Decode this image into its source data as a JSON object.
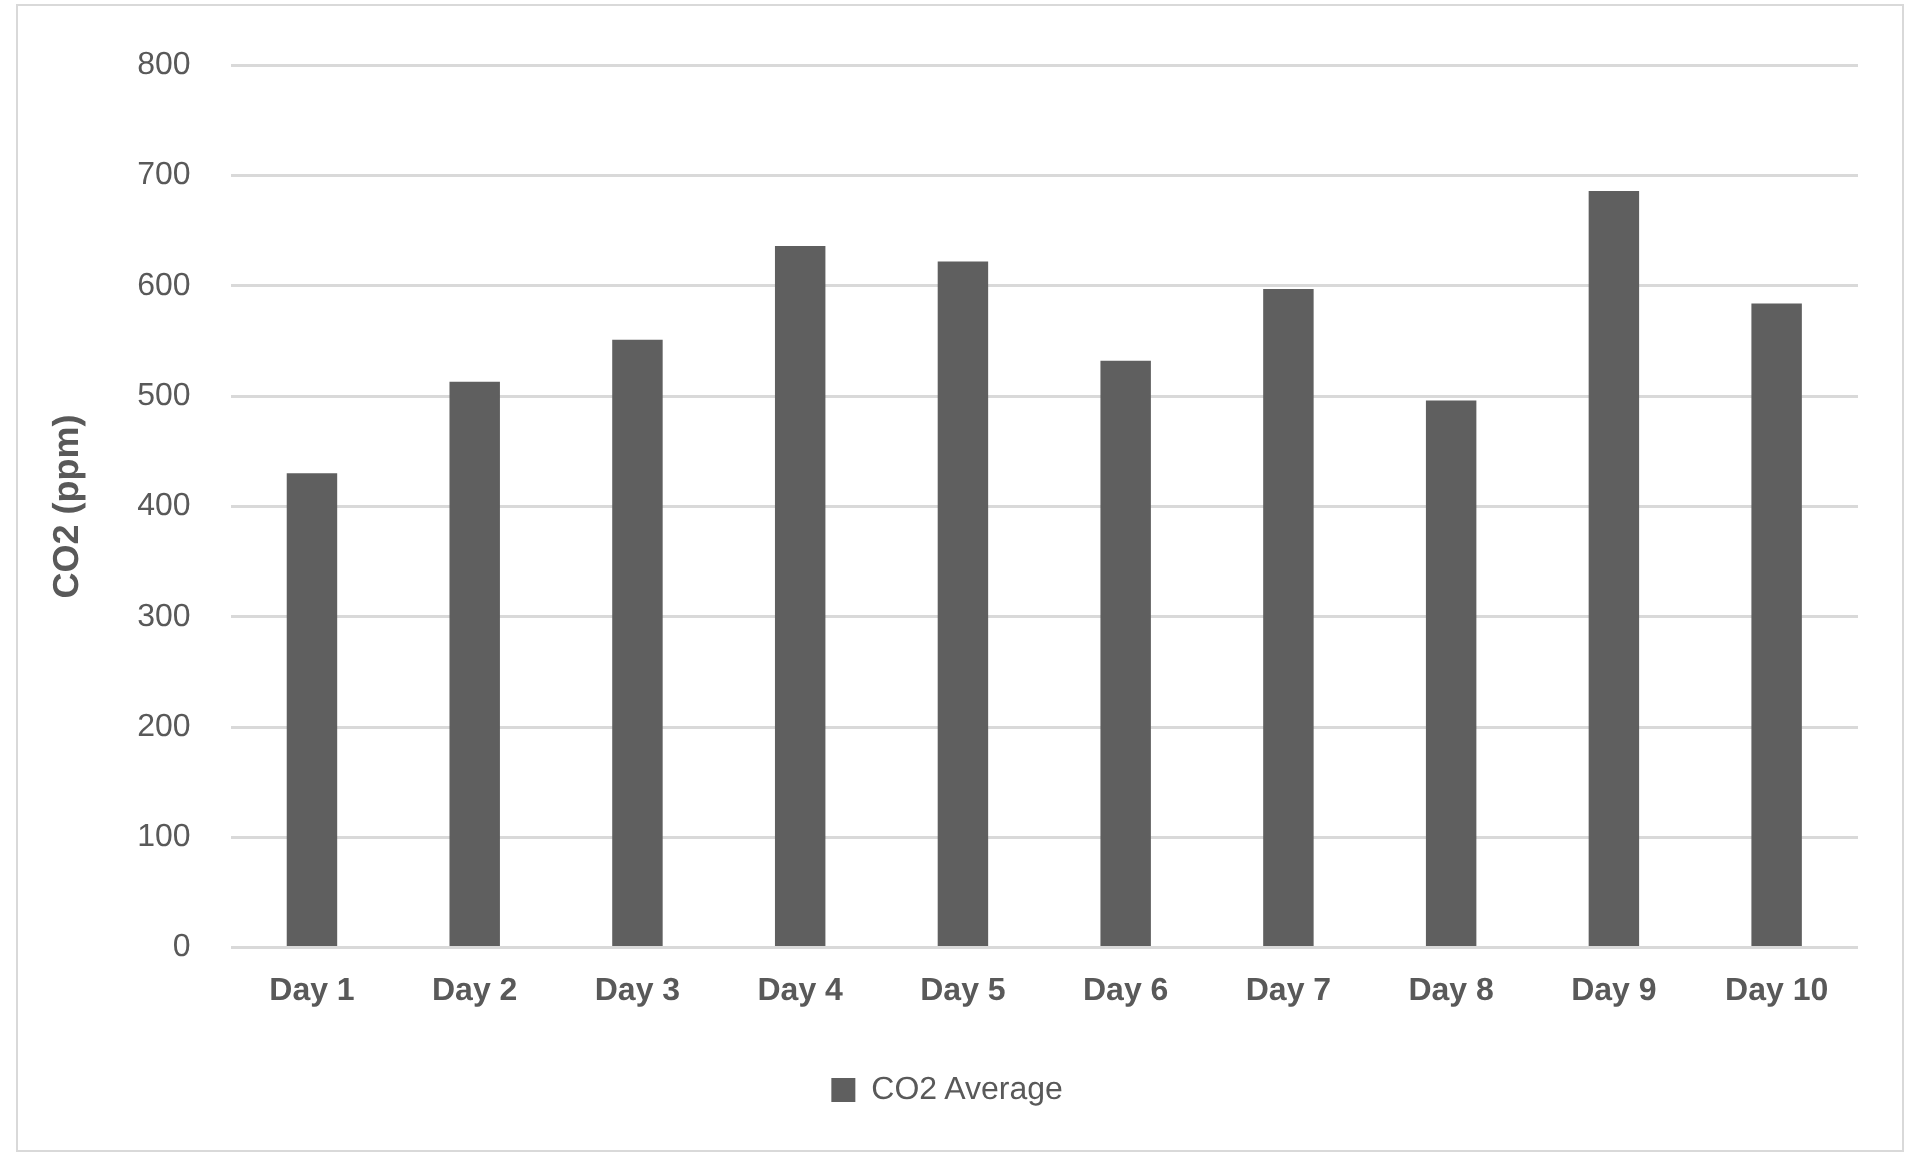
{
  "chart_data": {
    "type": "bar",
    "ylabel": "CO2 (ppm)",
    "categories": [
      "Day 1",
      "Day 2",
      "Day 3",
      "Day 4",
      "Day 5",
      "Day 6",
      "Day 7",
      "Day 8",
      "Day 9",
      "Day 10"
    ],
    "series": [
      {
        "name": "CO2 Average",
        "color": "#5f5f5f",
        "values": [
          430,
          513,
          551,
          636,
          622,
          532,
          597,
          496,
          686,
          584
        ]
      }
    ],
    "ylim": [
      0,
      800
    ],
    "yticks": [
      0,
      100,
      200,
      300,
      400,
      500,
      600,
      700,
      800
    ],
    "grid": "y",
    "legend": "bottom"
  }
}
